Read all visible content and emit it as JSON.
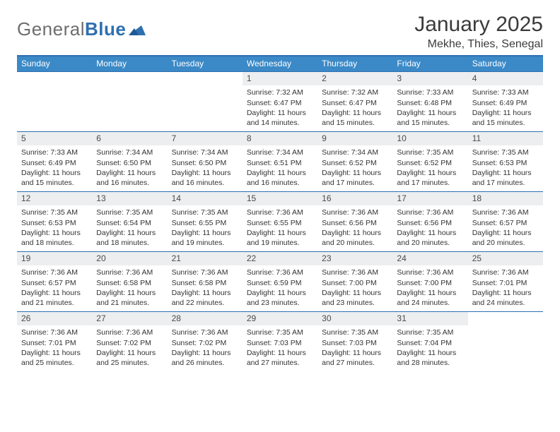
{
  "logo": {
    "text_gray": "General",
    "text_blue": "Blue"
  },
  "title": "January 2025",
  "subtitle": "Mekhe, Thies, Senegal",
  "colors": {
    "header_bg": "#3b89c7",
    "border": "#2f6fb0",
    "daynum_bg": "#eceef0",
    "text": "#333333",
    "logo_gray": "#6e6e6e",
    "logo_blue": "#2f6fb0"
  },
  "days_of_week": [
    "Sunday",
    "Monday",
    "Tuesday",
    "Wednesday",
    "Thursday",
    "Friday",
    "Saturday"
  ],
  "weeks": [
    [
      {
        "n": "",
        "lines": []
      },
      {
        "n": "",
        "lines": []
      },
      {
        "n": "",
        "lines": []
      },
      {
        "n": "1",
        "lines": [
          "Sunrise: 7:32 AM",
          "Sunset: 6:47 PM",
          "Daylight: 11 hours and 14 minutes."
        ]
      },
      {
        "n": "2",
        "lines": [
          "Sunrise: 7:32 AM",
          "Sunset: 6:47 PM",
          "Daylight: 11 hours and 15 minutes."
        ]
      },
      {
        "n": "3",
        "lines": [
          "Sunrise: 7:33 AM",
          "Sunset: 6:48 PM",
          "Daylight: 11 hours and 15 minutes."
        ]
      },
      {
        "n": "4",
        "lines": [
          "Sunrise: 7:33 AM",
          "Sunset: 6:49 PM",
          "Daylight: 11 hours and 15 minutes."
        ]
      }
    ],
    [
      {
        "n": "5",
        "lines": [
          "Sunrise: 7:33 AM",
          "Sunset: 6:49 PM",
          "Daylight: 11 hours and 15 minutes."
        ]
      },
      {
        "n": "6",
        "lines": [
          "Sunrise: 7:34 AM",
          "Sunset: 6:50 PM",
          "Daylight: 11 hours and 16 minutes."
        ]
      },
      {
        "n": "7",
        "lines": [
          "Sunrise: 7:34 AM",
          "Sunset: 6:50 PM",
          "Daylight: 11 hours and 16 minutes."
        ]
      },
      {
        "n": "8",
        "lines": [
          "Sunrise: 7:34 AM",
          "Sunset: 6:51 PM",
          "Daylight: 11 hours and 16 minutes."
        ]
      },
      {
        "n": "9",
        "lines": [
          "Sunrise: 7:34 AM",
          "Sunset: 6:52 PM",
          "Daylight: 11 hours and 17 minutes."
        ]
      },
      {
        "n": "10",
        "lines": [
          "Sunrise: 7:35 AM",
          "Sunset: 6:52 PM",
          "Daylight: 11 hours and 17 minutes."
        ]
      },
      {
        "n": "11",
        "lines": [
          "Sunrise: 7:35 AM",
          "Sunset: 6:53 PM",
          "Daylight: 11 hours and 17 minutes."
        ]
      }
    ],
    [
      {
        "n": "12",
        "lines": [
          "Sunrise: 7:35 AM",
          "Sunset: 6:53 PM",
          "Daylight: 11 hours and 18 minutes."
        ]
      },
      {
        "n": "13",
        "lines": [
          "Sunrise: 7:35 AM",
          "Sunset: 6:54 PM",
          "Daylight: 11 hours and 18 minutes."
        ]
      },
      {
        "n": "14",
        "lines": [
          "Sunrise: 7:35 AM",
          "Sunset: 6:55 PM",
          "Daylight: 11 hours and 19 minutes."
        ]
      },
      {
        "n": "15",
        "lines": [
          "Sunrise: 7:36 AM",
          "Sunset: 6:55 PM",
          "Daylight: 11 hours and 19 minutes."
        ]
      },
      {
        "n": "16",
        "lines": [
          "Sunrise: 7:36 AM",
          "Sunset: 6:56 PM",
          "Daylight: 11 hours and 20 minutes."
        ]
      },
      {
        "n": "17",
        "lines": [
          "Sunrise: 7:36 AM",
          "Sunset: 6:56 PM",
          "Daylight: 11 hours and 20 minutes."
        ]
      },
      {
        "n": "18",
        "lines": [
          "Sunrise: 7:36 AM",
          "Sunset: 6:57 PM",
          "Daylight: 11 hours and 20 minutes."
        ]
      }
    ],
    [
      {
        "n": "19",
        "lines": [
          "Sunrise: 7:36 AM",
          "Sunset: 6:57 PM",
          "Daylight: 11 hours and 21 minutes."
        ]
      },
      {
        "n": "20",
        "lines": [
          "Sunrise: 7:36 AM",
          "Sunset: 6:58 PM",
          "Daylight: 11 hours and 21 minutes."
        ]
      },
      {
        "n": "21",
        "lines": [
          "Sunrise: 7:36 AM",
          "Sunset: 6:58 PM",
          "Daylight: 11 hours and 22 minutes."
        ]
      },
      {
        "n": "22",
        "lines": [
          "Sunrise: 7:36 AM",
          "Sunset: 6:59 PM",
          "Daylight: 11 hours and 23 minutes."
        ]
      },
      {
        "n": "23",
        "lines": [
          "Sunrise: 7:36 AM",
          "Sunset: 7:00 PM",
          "Daylight: 11 hours and 23 minutes."
        ]
      },
      {
        "n": "24",
        "lines": [
          "Sunrise: 7:36 AM",
          "Sunset: 7:00 PM",
          "Daylight: 11 hours and 24 minutes."
        ]
      },
      {
        "n": "25",
        "lines": [
          "Sunrise: 7:36 AM",
          "Sunset: 7:01 PM",
          "Daylight: 11 hours and 24 minutes."
        ]
      }
    ],
    [
      {
        "n": "26",
        "lines": [
          "Sunrise: 7:36 AM",
          "Sunset: 7:01 PM",
          "Daylight: 11 hours and 25 minutes."
        ]
      },
      {
        "n": "27",
        "lines": [
          "Sunrise: 7:36 AM",
          "Sunset: 7:02 PM",
          "Daylight: 11 hours and 25 minutes."
        ]
      },
      {
        "n": "28",
        "lines": [
          "Sunrise: 7:36 AM",
          "Sunset: 7:02 PM",
          "Daylight: 11 hours and 26 minutes."
        ]
      },
      {
        "n": "29",
        "lines": [
          "Sunrise: 7:35 AM",
          "Sunset: 7:03 PM",
          "Daylight: 11 hours and 27 minutes."
        ]
      },
      {
        "n": "30",
        "lines": [
          "Sunrise: 7:35 AM",
          "Sunset: 7:03 PM",
          "Daylight: 11 hours and 27 minutes."
        ]
      },
      {
        "n": "31",
        "lines": [
          "Sunrise: 7:35 AM",
          "Sunset: 7:04 PM",
          "Daylight: 11 hours and 28 minutes."
        ]
      },
      {
        "n": "",
        "lines": []
      }
    ]
  ]
}
